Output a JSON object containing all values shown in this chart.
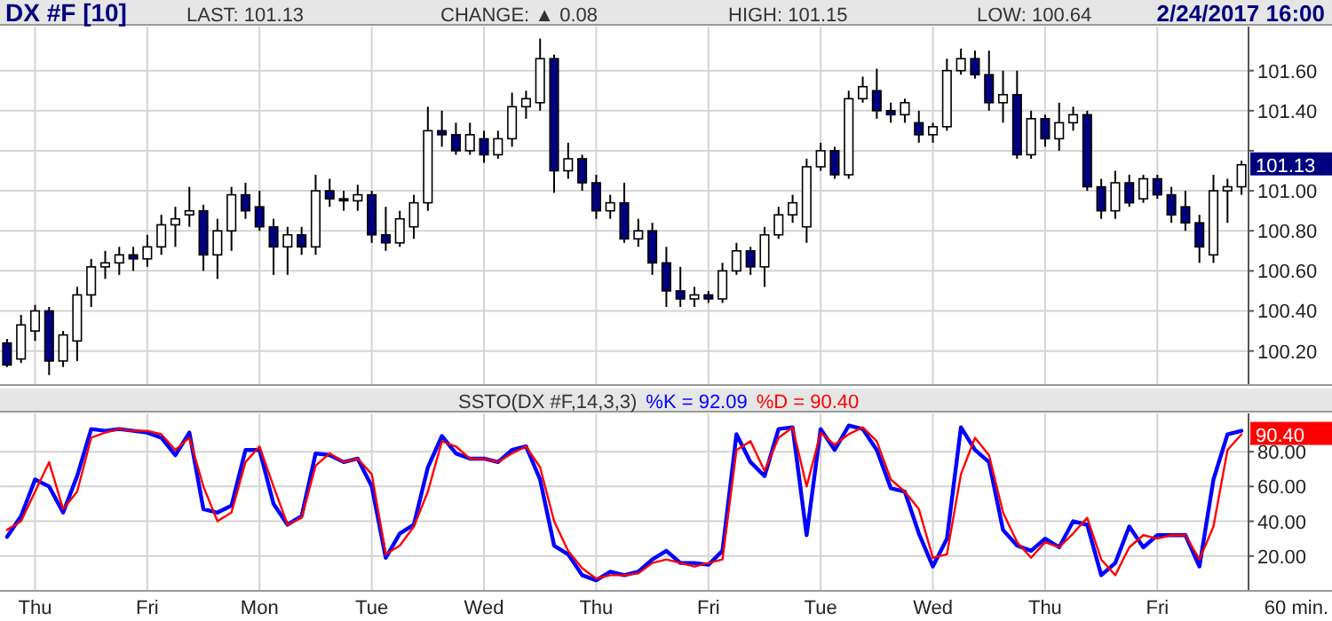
{
  "chart_data": [
    {
      "type": "candlestick",
      "title": "DX #F [10]",
      "annotations": [
        "LAST: 101.13",
        "CHANGE: ▲ 0.08",
        "HIGH: 101.15",
        "LOW: 100.64",
        "2/24/2017 16:00",
        "101.13"
      ],
      "categories": [
        null,
        null,
        null,
        null,
        null,
        null,
        null,
        null,
        null,
        null,
        null,
        null,
        null,
        null,
        null,
        null,
        null,
        null,
        null,
        null,
        null,
        null,
        null,
        null,
        null,
        null,
        null,
        null,
        null,
        null,
        null,
        null,
        null,
        null,
        null,
        null,
        null,
        null,
        null,
        null,
        null,
        null,
        null,
        null,
        null,
        null,
        null,
        null,
        null,
        null,
        null,
        null,
        null,
        null,
        null,
        null,
        null,
        null,
        null,
        null,
        null,
        null,
        null,
        null,
        null,
        null,
        null,
        null,
        null,
        null,
        null,
        null,
        null,
        null,
        null,
        null,
        null,
        null,
        null,
        null,
        null,
        null,
        null,
        null,
        null,
        null,
        null,
        null,
        null
      ],
      "ohlc": [
        [
          100.24,
          100.26,
          100.12,
          100.13
        ],
        [
          100.16,
          100.38,
          100.14,
          100.33
        ],
        [
          100.3,
          100.43,
          100.25,
          100.4
        ],
        [
          100.4,
          100.42,
          100.08,
          100.15
        ],
        [
          100.15,
          100.3,
          100.12,
          100.28
        ],
        [
          100.25,
          100.52,
          100.15,
          100.48
        ],
        [
          100.48,
          100.66,
          100.42,
          100.62
        ],
        [
          100.62,
          100.7,
          100.56,
          100.64
        ],
        [
          100.64,
          100.72,
          100.58,
          100.68
        ],
        [
          100.68,
          100.72,
          100.6,
          100.66
        ],
        [
          100.66,
          100.78,
          100.62,
          100.72
        ],
        [
          100.72,
          100.88,
          100.68,
          100.83
        ],
        [
          100.83,
          100.92,
          100.72,
          100.86
        ],
        [
          100.88,
          101.02,
          100.82,
          100.9
        ],
        [
          100.9,
          100.93,
          100.6,
          100.68
        ],
        [
          100.68,
          100.86,
          100.56,
          100.8
        ],
        [
          100.8,
          101.02,
          100.7,
          100.98
        ],
        [
          100.98,
          101.04,
          100.86,
          100.9
        ],
        [
          100.92,
          101.0,
          100.8,
          100.82
        ],
        [
          100.82,
          100.86,
          100.58,
          100.72
        ],
        [
          100.72,
          100.82,
          100.58,
          100.78
        ],
        [
          100.78,
          100.82,
          100.68,
          100.72
        ],
        [
          100.72,
          101.08,
          100.68,
          101.0
        ],
        [
          101.0,
          101.06,
          100.92,
          100.96
        ],
        [
          100.96,
          101.0,
          100.9,
          100.95
        ],
        [
          100.95,
          101.03,
          100.9,
          100.98
        ],
        [
          100.98,
          101.0,
          100.74,
          100.78
        ],
        [
          100.78,
          100.92,
          100.7,
          100.74
        ],
        [
          100.74,
          100.9,
          100.72,
          100.86
        ],
        [
          100.82,
          100.98,
          100.76,
          100.94
        ],
        [
          100.94,
          101.42,
          100.9,
          101.3
        ],
        [
          101.3,
          101.4,
          101.22,
          101.28
        ],
        [
          101.28,
          101.34,
          101.18,
          101.2
        ],
        [
          101.2,
          101.34,
          101.18,
          101.28
        ],
        [
          101.26,
          101.3,
          101.14,
          101.18
        ],
        [
          101.18,
          101.3,
          101.16,
          101.26
        ],
        [
          101.26,
          101.49,
          101.22,
          101.42
        ],
        [
          101.42,
          101.5,
          101.36,
          101.46
        ],
        [
          101.44,
          101.76,
          101.4,
          101.66
        ],
        [
          101.66,
          101.68,
          100.99,
          101.1
        ],
        [
          101.1,
          101.24,
          101.06,
          101.16
        ],
        [
          101.16,
          101.18,
          101.0,
          101.04
        ],
        [
          101.04,
          101.08,
          100.86,
          100.9
        ],
        [
          100.9,
          100.98,
          100.86,
          100.94
        ],
        [
          100.94,
          101.04,
          100.74,
          100.76
        ],
        [
          100.76,
          100.86,
          100.72,
          100.8
        ],
        [
          100.8,
          100.84,
          100.58,
          100.64
        ],
        [
          100.64,
          100.72,
          100.42,
          100.5
        ],
        [
          100.5,
          100.62,
          100.42,
          100.46
        ],
        [
          100.46,
          100.52,
          100.42,
          100.48
        ],
        [
          100.48,
          100.5,
          100.44,
          100.46
        ],
        [
          100.46,
          100.64,
          100.44,
          100.6
        ],
        [
          100.6,
          100.74,
          100.58,
          100.7
        ],
        [
          100.7,
          100.72,
          100.58,
          100.62
        ],
        [
          100.62,
          100.82,
          100.52,
          100.78
        ],
        [
          100.78,
          100.92,
          100.76,
          100.88
        ],
        [
          100.88,
          100.98,
          100.84,
          100.94
        ],
        [
          100.82,
          101.16,
          100.74,
          101.12
        ],
        [
          101.12,
          101.24,
          101.1,
          101.2
        ],
        [
          101.2,
          101.22,
          101.06,
          101.08
        ],
        [
          101.08,
          101.5,
          101.06,
          101.46
        ],
        [
          101.46,
          101.57,
          101.44,
          101.52
        ],
        [
          101.5,
          101.61,
          101.36,
          101.4
        ],
        [
          101.4,
          101.44,
          101.34,
          101.38
        ],
        [
          101.38,
          101.46,
          101.34,
          101.44
        ],
        [
          101.34,
          101.4,
          101.24,
          101.28
        ],
        [
          101.28,
          101.34,
          101.24,
          101.32
        ],
        [
          101.32,
          101.66,
          101.3,
          101.6
        ],
        [
          101.6,
          101.71,
          101.58,
          101.66
        ],
        [
          101.66,
          101.7,
          101.56,
          101.58
        ],
        [
          101.58,
          101.7,
          101.4,
          101.44
        ],
        [
          101.44,
          101.6,
          101.34,
          101.48
        ],
        [
          101.48,
          101.6,
          101.16,
          101.18
        ],
        [
          101.18,
          101.4,
          101.16,
          101.36
        ],
        [
          101.36,
          101.38,
          101.22,
          101.26
        ],
        [
          101.26,
          101.44,
          101.2,
          101.34
        ],
        [
          101.34,
          101.42,
          101.3,
          101.38
        ],
        [
          101.38,
          101.4,
          101.0,
          101.02
        ],
        [
          101.02,
          101.06,
          100.86,
          100.9
        ],
        [
          100.9,
          101.1,
          100.86,
          101.04
        ],
        [
          101.04,
          101.08,
          100.92,
          100.94
        ],
        [
          100.96,
          101.08,
          100.94,
          101.06
        ],
        [
          101.06,
          101.08,
          100.96,
          100.98
        ],
        [
          100.98,
          101.02,
          100.84,
          100.88
        ],
        [
          100.92,
          101.0,
          100.8,
          100.84
        ],
        [
          100.84,
          100.88,
          100.64,
          100.72
        ],
        [
          100.68,
          101.08,
          100.64,
          101.0
        ],
        [
          101.0,
          101.06,
          100.84,
          101.02
        ],
        [
          101.02,
          101.15,
          100.98,
          101.13
        ]
      ],
      "ylim": [
        100.03,
        101.82
      ],
      "yticks": [
        {
          "value": 100.2,
          "label": "100.20"
        },
        {
          "value": 100.4,
          "label": "100.40"
        },
        {
          "value": 100.6,
          "label": "100.60"
        },
        {
          "value": 100.8,
          "label": "100.80"
        },
        {
          "value": 101.0,
          "label": "101.00"
        },
        {
          "value": 101.2,
          "label": null
        },
        {
          "value": 101.4,
          "label": "101.40"
        },
        {
          "value": 101.6,
          "label": "101.60"
        }
      ],
      "grid": true,
      "tick_labels": "y"
    },
    {
      "type": "line",
      "title": "SSTO(DX #F,14,3,3)",
      "xlabel": "60 min.",
      "annotations": [
        "90.40"
      ],
      "categories": [
        null,
        null,
        "Thu",
        null,
        null,
        null,
        null,
        null,
        null,
        null,
        "Fri",
        null,
        null,
        null,
        null,
        null,
        null,
        null,
        "Mon",
        null,
        null,
        null,
        null,
        null,
        null,
        null,
        "Tue",
        null,
        null,
        null,
        null,
        null,
        null,
        null,
        "Wed",
        null,
        null,
        null,
        null,
        null,
        null,
        null,
        "Thu",
        null,
        null,
        null,
        null,
        null,
        null,
        null,
        "Fri",
        null,
        null,
        null,
        null,
        null,
        null,
        null,
        "Tue",
        null,
        null,
        null,
        null,
        null,
        null,
        null,
        "Wed",
        null,
        null,
        null,
        null,
        null,
        null,
        null,
        "Thu",
        null,
        null,
        null,
        null,
        null,
        null,
        null,
        "Fri",
        null,
        null,
        null,
        null,
        null,
        null
      ],
      "series": [
        {
          "name": "%K = 92.09",
          "color": "#0000ff",
          "values": [
            31,
            43,
            64,
            60,
            45,
            66,
            93,
            92,
            93,
            92,
            91,
            88,
            78,
            91,
            47,
            45,
            49,
            81,
            81,
            50,
            38,
            43,
            79,
            78,
            74,
            76,
            60,
            19,
            33,
            38,
            71,
            89,
            79,
            76,
            76,
            74,
            81,
            83,
            64,
            26,
            21,
            9,
            6,
            11,
            9,
            11,
            18,
            23,
            16,
            16,
            15,
            23,
            90,
            74,
            66,
            93,
            94,
            32,
            93,
            81,
            95,
            93,
            81,
            59,
            57,
            33,
            14,
            30,
            94,
            81,
            74,
            35,
            26,
            23,
            30,
            25,
            40,
            38,
            9,
            16,
            37,
            25,
            32,
            32,
            32,
            14,
            64,
            90,
            92
          ]
        },
        {
          "name": "%D = 90.40",
          "color": "#ff0000",
          "values": [
            35,
            40,
            57,
            74,
            47,
            57,
            88,
            91,
            93,
            92,
            92,
            90,
            81,
            88,
            60,
            40,
            45,
            74,
            83,
            60,
            38,
            42,
            72,
            79,
            74,
            76,
            67,
            21,
            26,
            37,
            57,
            86,
            83,
            76,
            76,
            74,
            79,
            83,
            71,
            40,
            23,
            13,
            7,
            9,
            9,
            10,
            16,
            18,
            16,
            14,
            16,
            18,
            81,
            86,
            69,
            88,
            94,
            60,
            91,
            84,
            90,
            94,
            86,
            64,
            57,
            47,
            19,
            21,
            67,
            88,
            78,
            45,
            28,
            19,
            28,
            25,
            33,
            42,
            18,
            9,
            25,
            32,
            30,
            32,
            32,
            18,
            37,
            81,
            90
          ]
        }
      ],
      "ylim": [
        0,
        102
      ],
      "yticks": [
        {
          "value": 20,
          "label": "20.00"
        },
        {
          "value": 40,
          "label": "40.00"
        },
        {
          "value": 60,
          "label": "60.00"
        },
        {
          "value": 80,
          "label": "80.00"
        }
      ],
      "grid": true,
      "legend": "top"
    }
  ]
}
